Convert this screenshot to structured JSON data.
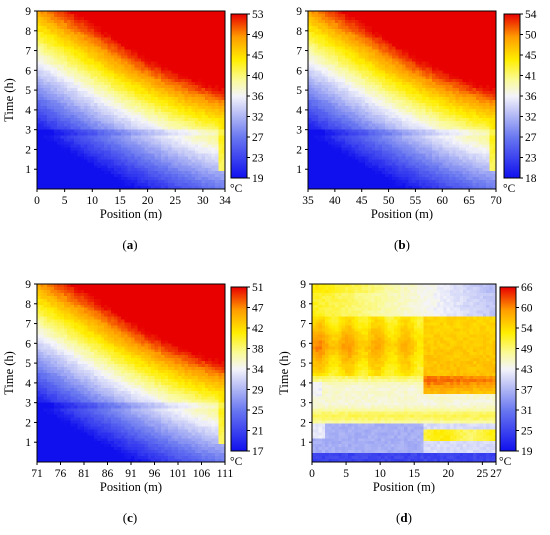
{
  "chart_data": [
    {
      "type": "heatmap",
      "panel_label": "(a)",
      "panel_letter": "a",
      "xlabel": "Position (m)",
      "ylabel": "Time (h)",
      "xlim": [
        0,
        34
      ],
      "ylim": [
        0,
        9
      ],
      "x_ticks": [
        "0",
        "5",
        "10",
        "15",
        "20",
        "25",
        "30",
        "34"
      ],
      "y_ticks": [
        "1",
        "2",
        "3",
        "4",
        "5",
        "6",
        "7",
        "8",
        "9"
      ],
      "colorbar": {
        "unit": "°C",
        "min": 19,
        "max": 53,
        "ticks": [
          "53",
          "49",
          "45",
          "40",
          "36",
          "32",
          "27",
          "23",
          "19"
        ]
      },
      "pattern": "front"
    },
    {
      "type": "heatmap",
      "panel_label": "(b)",
      "panel_letter": "b",
      "xlabel": "Position (m)",
      "ylabel": "",
      "xlim": [
        35,
        70
      ],
      "ylim": [
        0,
        9
      ],
      "x_ticks": [
        "35",
        "40",
        "45",
        "50",
        "55",
        "60",
        "65",
        "70"
      ],
      "y_ticks": [
        "1",
        "2",
        "3",
        "4",
        "5",
        "6",
        "7",
        "8",
        "9"
      ],
      "colorbar": {
        "unit": "°C",
        "min": 18,
        "max": 54,
        "ticks": [
          "54",
          "50",
          "45",
          "41",
          "36",
          "32",
          "27",
          "23",
          "18"
        ]
      },
      "pattern": "front"
    },
    {
      "type": "heatmap",
      "panel_label": "(c)",
      "panel_letter": "c",
      "xlabel": "Position (m)",
      "ylabel": "Time (h)",
      "xlim": [
        71,
        111
      ],
      "ylim": [
        0,
        9
      ],
      "x_ticks": [
        "71",
        "76",
        "81",
        "86",
        "91",
        "96",
        "101",
        "106",
        "111"
      ],
      "y_ticks": [
        "1",
        "2",
        "3",
        "4",
        "5",
        "6",
        "7",
        "8",
        "9"
      ],
      "colorbar": {
        "unit": "°C",
        "min": 17,
        "max": 51,
        "ticks": [
          "51",
          "47",
          "42",
          "38",
          "34",
          "29",
          "25",
          "21",
          "17"
        ]
      },
      "pattern": "front"
    },
    {
      "type": "heatmap",
      "panel_label": "(d)",
      "panel_letter": "d",
      "xlabel": "Position (m)",
      "ylabel": "Time (h)",
      "xlim": [
        0,
        27
      ],
      "ylim": [
        0,
        9
      ],
      "x_ticks": [
        "0",
        "5",
        "10",
        "15",
        "20",
        "25",
        "27"
      ],
      "y_ticks": [
        "1",
        "2",
        "3",
        "4",
        "5",
        "6",
        "7",
        "8",
        "9"
      ],
      "colorbar": {
        "unit": "°C",
        "min": 19,
        "max": 66,
        "ticks": [
          "66",
          "60",
          "54",
          "49",
          "43",
          "37",
          "31",
          "25",
          "19"
        ]
      },
      "pattern": "stepped"
    }
  ]
}
